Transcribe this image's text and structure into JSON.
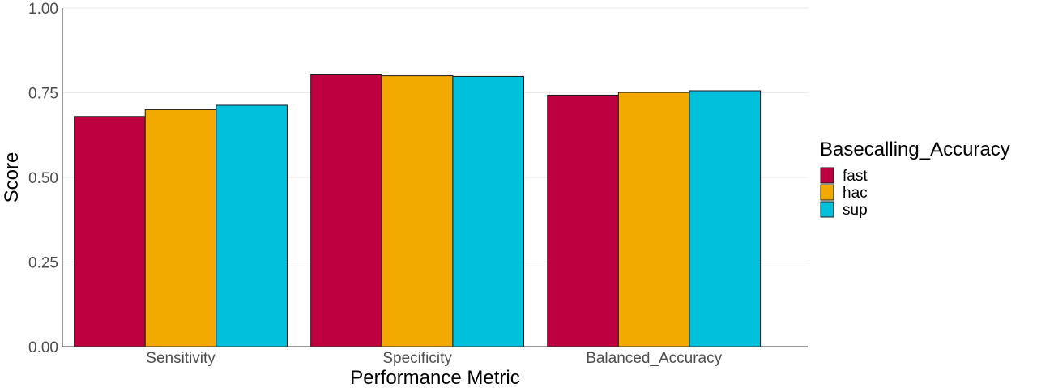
{
  "chart_data": {
    "type": "bar",
    "categories": [
      "Sensitivity",
      "Specificity",
      "Balanced_Accuracy"
    ],
    "series": [
      {
        "name": "fast",
        "color": "#be0040",
        "values": [
          0.68,
          0.805,
          0.743
        ]
      },
      {
        "name": "hac",
        "color": "#f2a900",
        "values": [
          0.7,
          0.8,
          0.751
        ]
      },
      {
        "name": "sup",
        "color": "#00c0dc",
        "values": [
          0.713,
          0.798,
          0.756
        ]
      }
    ],
    "ylim": [
      0,
      1
    ],
    "yticks": [
      "0.00",
      "0.25",
      "0.50",
      "0.75",
      "1.00"
    ],
    "ytick_values": [
      0,
      0.25,
      0.5,
      0.75,
      1.0
    ],
    "xlabel": "Performance Metric",
    "ylabel": "Score",
    "legend_title": "Basecalling_Accuracy",
    "legend_position": "right",
    "grid": true
  }
}
